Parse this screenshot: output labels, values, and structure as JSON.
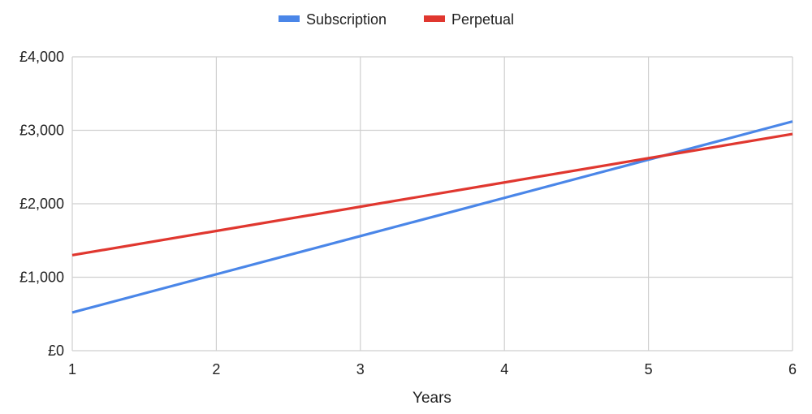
{
  "chart_data": {
    "type": "line",
    "title": "",
    "xlabel": "Years",
    "ylabel": "",
    "x": [
      1,
      2,
      3,
      4,
      5,
      6
    ],
    "xlim": [
      1,
      6
    ],
    "ylim": [
      0,
      4000
    ],
    "x_ticks": [
      "1",
      "2",
      "3",
      "4",
      "5",
      "6"
    ],
    "y_ticks": [
      0,
      1000,
      2000,
      3000,
      4000
    ],
    "y_tick_labels": [
      "£0",
      "£1,000",
      "£2,000",
      "£3,000",
      "£4,000"
    ],
    "grid": true,
    "legend_position": "top",
    "series": [
      {
        "name": "Subscription",
        "color": "#4a86e8",
        "values": [
          520,
          1040,
          1560,
          2080,
          2600,
          3120
        ]
      },
      {
        "name": "Perpetual",
        "color": "#e0372f",
        "values": [
          1300,
          1630,
          1960,
          2290,
          2620,
          2950
        ]
      }
    ]
  }
}
